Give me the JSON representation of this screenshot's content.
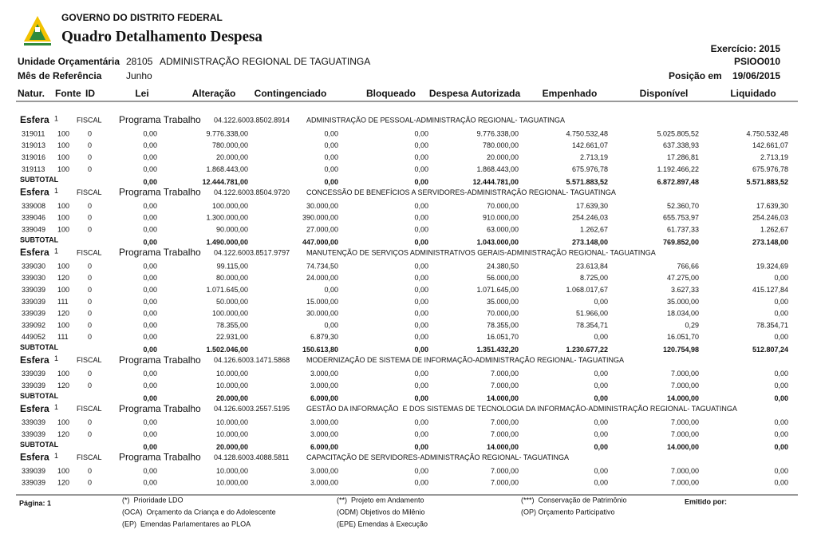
{
  "header": {
    "org": "GOVERNO DO DISTRITO FEDERAL",
    "title": "Quadro Detalhamento Despesa",
    "exercicio": "Exercício: 2015",
    "unidade_label": "Unidade Orçamentária",
    "unidade_code": "28105",
    "unidade_name": "ADMINISTRAÇÃO REGIONAL DE TAGUATINGA",
    "report_code": "PSIOO010",
    "mes_label": "Mês de Referência",
    "mes": "Junho",
    "posicao_label": "Posição em",
    "posicao": "19/06/2015"
  },
  "columns": [
    "Natur.",
    "Fonte",
    "ID",
    "Lei",
    "Alteração",
    "Contingenciado",
    "Bloqueado",
    "Despesa Autorizada",
    "Empenhado",
    "Disponível",
    "Liquidado"
  ],
  "sections": [
    {
      "esfera_label": "Esfera",
      "esfera": "1",
      "tipo": "FISCAL",
      "programa_label": "Programa Trabalho",
      "programa_code": "04.122.6003.8502.8914",
      "programa_desc": "ADMINISTRAÇÃO DE PESSOAL-ADMINISTRAÇÃO REGIONAL- TAGUATINGA",
      "rows": [
        [
          "319011",
          "100",
          "0",
          "0,00",
          "9.776.338,00",
          "0,00",
          "0,00",
          "9.776.338,00",
          "4.750.532,48",
          "5.025.805,52",
          "4.750.532,48"
        ],
        [
          "319013",
          "100",
          "0",
          "0,00",
          "780.000,00",
          "0,00",
          "0,00",
          "780.000,00",
          "142.661,07",
          "637.338,93",
          "142.661,07"
        ],
        [
          "319016",
          "100",
          "0",
          "0,00",
          "20.000,00",
          "0,00",
          "0,00",
          "20.000,00",
          "2.713,19",
          "17.286,81",
          "2.713,19"
        ],
        [
          "319113",
          "100",
          "0",
          "0,00",
          "1.868.443,00",
          "0,00",
          "0,00",
          "1.868.443,00",
          "675.976,78",
          "1.192.466,22",
          "675.976,78"
        ]
      ],
      "subtotal": {
        "label": "SUBTOTAL",
        "values": [
          "0,00",
          "12.444.781,00",
          "0,00",
          "0,00",
          "12.444.781,00",
          "5.571.883,52",
          "6.872.897,48",
          "5.571.883,52"
        ]
      }
    },
    {
      "esfera_label": "Esfera",
      "esfera": "1",
      "tipo": "FISCAL",
      "programa_label": "Programa Trabalho",
      "programa_code": "04.122.6003.8504.9720",
      "programa_desc": "CONCESSÃO DE BENEFÍCIOS A SERVIDORES-ADMINISTRAÇÃO REGIONAL- TAGUATINGA",
      "rows": [
        [
          "339008",
          "100",
          "0",
          "0,00",
          "100.000,00",
          "30.000,00",
          "0,00",
          "70.000,00",
          "17.639,30",
          "52.360,70",
          "17.639,30"
        ],
        [
          "339046",
          "100",
          "0",
          "0,00",
          "1.300.000,00",
          "390.000,00",
          "0,00",
          "910.000,00",
          "254.246,03",
          "655.753,97",
          "254.246,03"
        ],
        [
          "339049",
          "100",
          "0",
          "0,00",
          "90.000,00",
          "27.000,00",
          "0,00",
          "63.000,00",
          "1.262,67",
          "61.737,33",
          "1.262,67"
        ]
      ],
      "subtotal": {
        "label": "SUBTOTAL",
        "values": [
          "0,00",
          "1.490.000,00",
          "447.000,00",
          "0,00",
          "1.043.000,00",
          "273.148,00",
          "769.852,00",
          "273.148,00"
        ]
      }
    },
    {
      "esfera_label": "Esfera",
      "esfera": "1",
      "tipo": "FISCAL",
      "programa_label": "Programa Trabalho",
      "programa_code": "04.122.6003.8517.9797",
      "programa_desc": "MANUTENÇÃO DE SERVIÇOS ADMINISTRATIVOS GERAIS-ADMINISTRAÇÃO REGIONAL- TAGUATINGA",
      "rows": [
        [
          "339030",
          "100",
          "0",
          "0,00",
          "99.115,00",
          "74.734,50",
          "0,00",
          "24.380,50",
          "23.613,84",
          "766,66",
          "19.324,69"
        ],
        [
          "339030",
          "120",
          "0",
          "0,00",
          "80.000,00",
          "24.000,00",
          "0,00",
          "56.000,00",
          "8.725,00",
          "47.275,00",
          "0,00"
        ],
        [
          "339039",
          "100",
          "0",
          "0,00",
          "1.071.645,00",
          "0,00",
          "0,00",
          "1.071.645,00",
          "1.068.017,67",
          "3.627,33",
          "415.127,84"
        ],
        [
          "339039",
          "111",
          "0",
          "0,00",
          "50.000,00",
          "15.000,00",
          "0,00",
          "35.000,00",
          "0,00",
          "35.000,00",
          "0,00"
        ],
        [
          "339039",
          "120",
          "0",
          "0,00",
          "100.000,00",
          "30.000,00",
          "0,00",
          "70.000,00",
          "51.966,00",
          "18.034,00",
          "0,00"
        ],
        [
          "339092",
          "100",
          "0",
          "0,00",
          "78.355,00",
          "0,00",
          "0,00",
          "78.355,00",
          "78.354,71",
          "0,29",
          "78.354,71"
        ],
        [
          "449052",
          "111",
          "0",
          "0,00",
          "22.931,00",
          "6.879,30",
          "0,00",
          "16.051,70",
          "0,00",
          "16.051,70",
          "0,00"
        ]
      ],
      "subtotal": {
        "label": "SUBTOTAL",
        "values": [
          "0,00",
          "1.502.046,00",
          "150.613,80",
          "0,00",
          "1.351.432,20",
          "1.230.677,22",
          "120.754,98",
          "512.807,24"
        ]
      }
    },
    {
      "esfera_label": "Esfera",
      "esfera": "1",
      "tipo": "FISCAL",
      "programa_label": "Programa Trabalho",
      "programa_code": "04.126.6003.1471.5868",
      "programa_desc": "MODERNIZAÇÃO DE SISTEMA DE INFORMAÇÃO-ADMINISTRAÇÃO REGIONAL- TAGUATINGA",
      "rows": [
        [
          "339039",
          "100",
          "0",
          "0,00",
          "10.000,00",
          "3.000,00",
          "0,00",
          "7.000,00",
          "0,00",
          "7.000,00",
          "0,00"
        ],
        [
          "339039",
          "120",
          "0",
          "0,00",
          "10.000,00",
          "3.000,00",
          "0,00",
          "7.000,00",
          "0,00",
          "7.000,00",
          "0,00"
        ]
      ],
      "subtotal": {
        "label": "SUBTOTAL",
        "values": [
          "0,00",
          "20.000,00",
          "6.000,00",
          "0,00",
          "14.000,00",
          "0,00",
          "14.000,00",
          "0,00"
        ]
      }
    },
    {
      "esfera_label": "Esfera",
      "esfera": "1",
      "tipo": "FISCAL",
      "programa_label": "Programa Trabalho",
      "programa_code": "04.126.6003.2557.5195",
      "programa_desc": "GESTÃO DA INFORMAÇÃO  E DOS SISTEMAS DE TECNOLOGIA DA INFORMAÇÃO-ADMINISTRAÇÃO REGIONAL- TAGUATINGA",
      "rows": [
        [
          "339039",
          "100",
          "0",
          "0,00",
          "10.000,00",
          "3.000,00",
          "0,00",
          "7.000,00",
          "0,00",
          "7.000,00",
          "0,00"
        ],
        [
          "339039",
          "120",
          "0",
          "0,00",
          "10.000,00",
          "3.000,00",
          "0,00",
          "7.000,00",
          "0,00",
          "7.000,00",
          "0,00"
        ]
      ],
      "subtotal": {
        "label": "SUBTOTAL",
        "values": [
          "0,00",
          "20.000,00",
          "6.000,00",
          "0,00",
          "14.000,00",
          "0,00",
          "14.000,00",
          "0,00"
        ]
      }
    },
    {
      "esfera_label": "Esfera",
      "esfera": "1",
      "tipo": "FISCAL",
      "programa_label": "Programa Trabalho",
      "programa_code": "04.128.6003.4088.5811",
      "programa_desc": "CAPACITAÇÃO DE SERVIDORES-ADMINISTRAÇÃO REGIONAL- TAGUATINGA",
      "rows": [
        [
          "339039",
          "100",
          "0",
          "0,00",
          "10.000,00",
          "3.000,00",
          "0,00",
          "7.000,00",
          "0,00",
          "7.000,00",
          "0,00"
        ],
        [
          "339039",
          "120",
          "0",
          "0,00",
          "10.000,00",
          "3.000,00",
          "0,00",
          "7.000,00",
          "0,00",
          "7.000,00",
          "0,00"
        ]
      ]
    }
  ],
  "footer": {
    "page": "Página: 1",
    "emitido": "Emitido por:",
    "notes": [
      [
        "(*)  Prioridade LDO",
        "(**)  Projeto em Andamento",
        "(***)  Conservação de Patrimônio"
      ],
      [
        "(OCA)  Orçamento da Criança e do Adolescente",
        "(ODM) Objetivos do Milênio",
        "(OP) Orçamento Participativo"
      ],
      [
        "(EP)  Emendas Parlamentares ao PLOA",
        "(EPE) Emendas à Execução"
      ]
    ]
  }
}
